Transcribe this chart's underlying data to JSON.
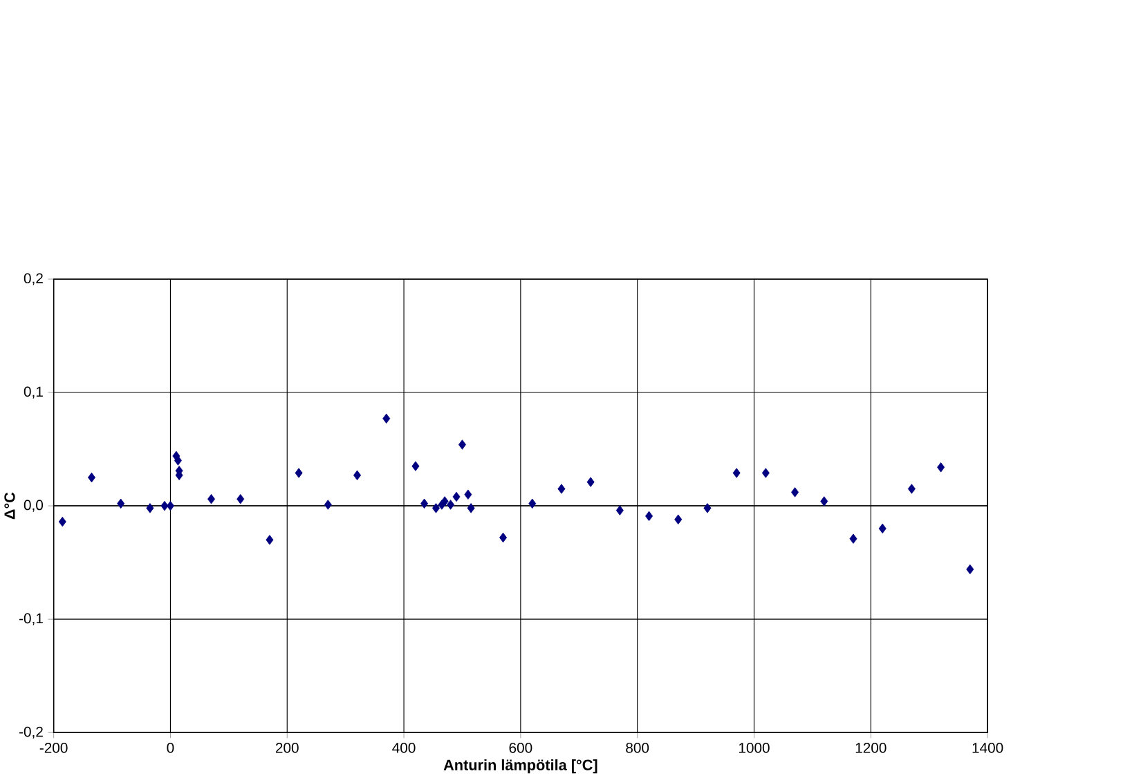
{
  "chart_data": {
    "type": "scatter",
    "xlabel": "Anturin lämpötila [°C]",
    "ylabel": "Δ°C",
    "xlim": [
      -200,
      1400
    ],
    "xticks": [
      -200,
      0,
      200,
      400,
      600,
      800,
      1000,
      1200,
      1400
    ],
    "ylim": [
      -0.2,
      0.2
    ],
    "yticks": [
      {
        "value": -0.2,
        "label": "-0,2"
      },
      {
        "value": -0.1,
        "label": "-0,1"
      },
      {
        "value": 0,
        "label": "0,0"
      },
      {
        "value": 0.1,
        "label": "0,1"
      },
      {
        "value": 0.2,
        "label": "0,2"
      }
    ],
    "grid": true,
    "marker": "diamond",
    "color": "#000080",
    "x": [
      -185,
      -135,
      -85,
      -35,
      -10,
      0,
      10,
      13,
      15,
      15,
      70,
      120,
      170,
      220,
      270,
      320,
      370,
      420,
      435,
      455,
      465,
      470,
      480,
      490,
      500,
      510,
      515,
      570,
      620,
      670,
      720,
      770,
      820,
      870,
      920,
      970,
      1020,
      1070,
      1120,
      1170,
      1220,
      1270,
      1320,
      1370
    ],
    "values": [
      -0.014,
      0.025,
      0.002,
      -0.002,
      0,
      0,
      0.044,
      0.04,
      0.031,
      0.027,
      0.006,
      0.006,
      -0.03,
      0.029,
      0.001,
      0.027,
      0.077,
      0.035,
      0.002,
      -0.002,
      0.001,
      0.004,
      0.001,
      0.008,
      0.054,
      0.01,
      -0.002,
      -0.028,
      0.002,
      0.015,
      0.021,
      -0.004,
      -0.009,
      -0.012,
      -0.002,
      0.029,
      0.029,
      0.012,
      0.004,
      -0.029,
      -0.02,
      0.015,
      0.034,
      -0.056
    ]
  }
}
